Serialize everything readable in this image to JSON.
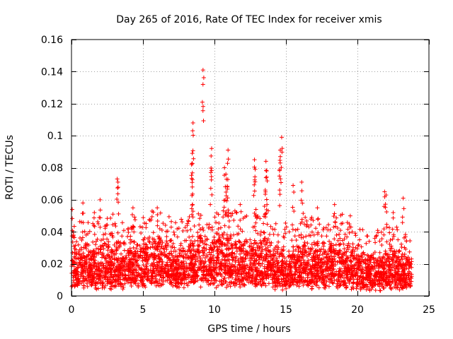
{
  "chart_data": {
    "type": "scatter",
    "title": "Day 265 of 2016, Rate Of TEC Index for receiver xmis",
    "xlabel": "GPS time / hours",
    "ylabel": "ROTI / TECUs",
    "xlim": [
      0,
      25
    ],
    "ylim": [
      0,
      0.16
    ],
    "xticks": [
      0,
      5,
      10,
      15,
      20,
      25
    ],
    "xtick_labels": [
      "0",
      "5",
      "10",
      "15",
      "20",
      "25"
    ],
    "yticks": [
      0,
      0.02,
      0.04,
      0.06,
      0.08,
      0.1,
      0.12,
      0.14,
      0.16
    ],
    "ytick_labels": [
      "0",
      "0.02",
      "0.04",
      "0.06",
      "0.08",
      "0.1",
      "0.12",
      "0.14",
      "0.16"
    ],
    "grid": true,
    "marker": "+",
    "color": "#ff0000",
    "notable_points": [
      {
        "x": 9.2,
        "y": 0.141
      },
      {
        "x": 8.5,
        "y": 0.108
      },
      {
        "x": 14.7,
        "y": 0.099
      },
      {
        "x": 9.8,
        "y": 0.092
      },
      {
        "x": 10.95,
        "y": 0.091
      },
      {
        "x": 14.6,
        "y": 0.091
      },
      {
        "x": 8.45,
        "y": 0.089
      },
      {
        "x": 12.8,
        "y": 0.085
      },
      {
        "x": 13.6,
        "y": 0.084
      },
      {
        "x": 14.6,
        "y": 0.083
      },
      {
        "x": 8.4,
        "y": 0.082
      },
      {
        "x": 10.7,
        "y": 0.08
      },
      {
        "x": 12.85,
        "y": 0.079
      },
      {
        "x": 13.65,
        "y": 0.078
      },
      {
        "x": 9.75,
        "y": 0.077
      },
      {
        "x": 10.8,
        "y": 0.076
      },
      {
        "x": 3.2,
        "y": 0.073
      },
      {
        "x": 3.25,
        "y": 0.071
      },
      {
        "x": 16.1,
        "y": 0.071
      },
      {
        "x": 15.5,
        "y": 0.069
      },
      {
        "x": 8.45,
        "y": 0.068
      },
      {
        "x": 10.9,
        "y": 0.068
      },
      {
        "x": 21.9,
        "y": 0.065
      },
      {
        "x": 22.0,
        "y": 0.063
      },
      {
        "x": 23.2,
        "y": 0.061
      },
      {
        "x": 0.8,
        "y": 0.058
      },
      {
        "x": 2.0,
        "y": 0.06
      },
      {
        "x": 11.8,
        "y": 0.057
      },
      {
        "x": 13.5,
        "y": 0.056
      },
      {
        "x": 18.4,
        "y": 0.057
      },
      {
        "x": 4.3,
        "y": 0.055
      },
      {
        "x": 6.0,
        "y": 0.055
      },
      {
        "x": 17.2,
        "y": 0.055
      },
      {
        "x": 12.9,
        "y": 0.054
      },
      {
        "x": 1.6,
        "y": 0.052
      },
      {
        "x": 2.9,
        "y": 0.051
      },
      {
        "x": 0.05,
        "y": 0.054
      },
      {
        "x": 19.5,
        "y": 0.05
      },
      {
        "x": 22.5,
        "y": 0.052
      },
      {
        "x": 16.8,
        "y": 0.049
      }
    ],
    "bands": [
      {
        "x0": 0.0,
        "x1": 1.0,
        "lo": 0.004,
        "hi": 0.036
      },
      {
        "x0": 1.0,
        "x1": 2.0,
        "lo": 0.004,
        "hi": 0.035
      },
      {
        "x0": 2.0,
        "x1": 3.0,
        "lo": 0.004,
        "hi": 0.038
      },
      {
        "x0": 3.0,
        "x1": 4.0,
        "lo": 0.004,
        "hi": 0.036
      },
      {
        "x0": 4.0,
        "x1": 5.0,
        "lo": 0.005,
        "hi": 0.038
      },
      {
        "x0": 5.0,
        "x1": 6.0,
        "lo": 0.004,
        "hi": 0.042
      },
      {
        "x0": 6.0,
        "x1": 7.0,
        "lo": 0.005,
        "hi": 0.04
      },
      {
        "x0": 7.0,
        "x1": 8.0,
        "lo": 0.005,
        "hi": 0.036
      },
      {
        "x0": 8.0,
        "x1": 9.0,
        "lo": 0.005,
        "hi": 0.043
      },
      {
        "x0": 9.0,
        "x1": 10.0,
        "lo": 0.005,
        "hi": 0.04
      },
      {
        "x0": 10.0,
        "x1": 11.0,
        "lo": 0.005,
        "hi": 0.045
      },
      {
        "x0": 11.0,
        "x1": 12.0,
        "lo": 0.005,
        "hi": 0.042
      },
      {
        "x0": 12.0,
        "x1": 13.0,
        "lo": 0.005,
        "hi": 0.04
      },
      {
        "x0": 13.0,
        "x1": 14.0,
        "lo": 0.005,
        "hi": 0.042
      },
      {
        "x0": 14.0,
        "x1": 15.0,
        "lo": 0.003,
        "hi": 0.036
      },
      {
        "x0": 15.0,
        "x1": 16.0,
        "lo": 0.004,
        "hi": 0.034
      },
      {
        "x0": 16.0,
        "x1": 17.0,
        "lo": 0.004,
        "hi": 0.04
      },
      {
        "x0": 17.0,
        "x1": 18.0,
        "lo": 0.004,
        "hi": 0.036
      },
      {
        "x0": 18.0,
        "x1": 19.0,
        "lo": 0.004,
        "hi": 0.04
      },
      {
        "x0": 19.0,
        "x1": 20.0,
        "lo": 0.004,
        "hi": 0.034
      },
      {
        "x0": 20.0,
        "x1": 21.0,
        "lo": 0.003,
        "hi": 0.03
      },
      {
        "x0": 21.0,
        "x1": 22.0,
        "lo": 0.003,
        "hi": 0.03
      },
      {
        "x0": 22.0,
        "x1": 23.0,
        "lo": 0.003,
        "hi": 0.033
      },
      {
        "x0": 23.0,
        "x1": 23.8,
        "lo": 0.003,
        "hi": 0.028
      }
    ]
  }
}
